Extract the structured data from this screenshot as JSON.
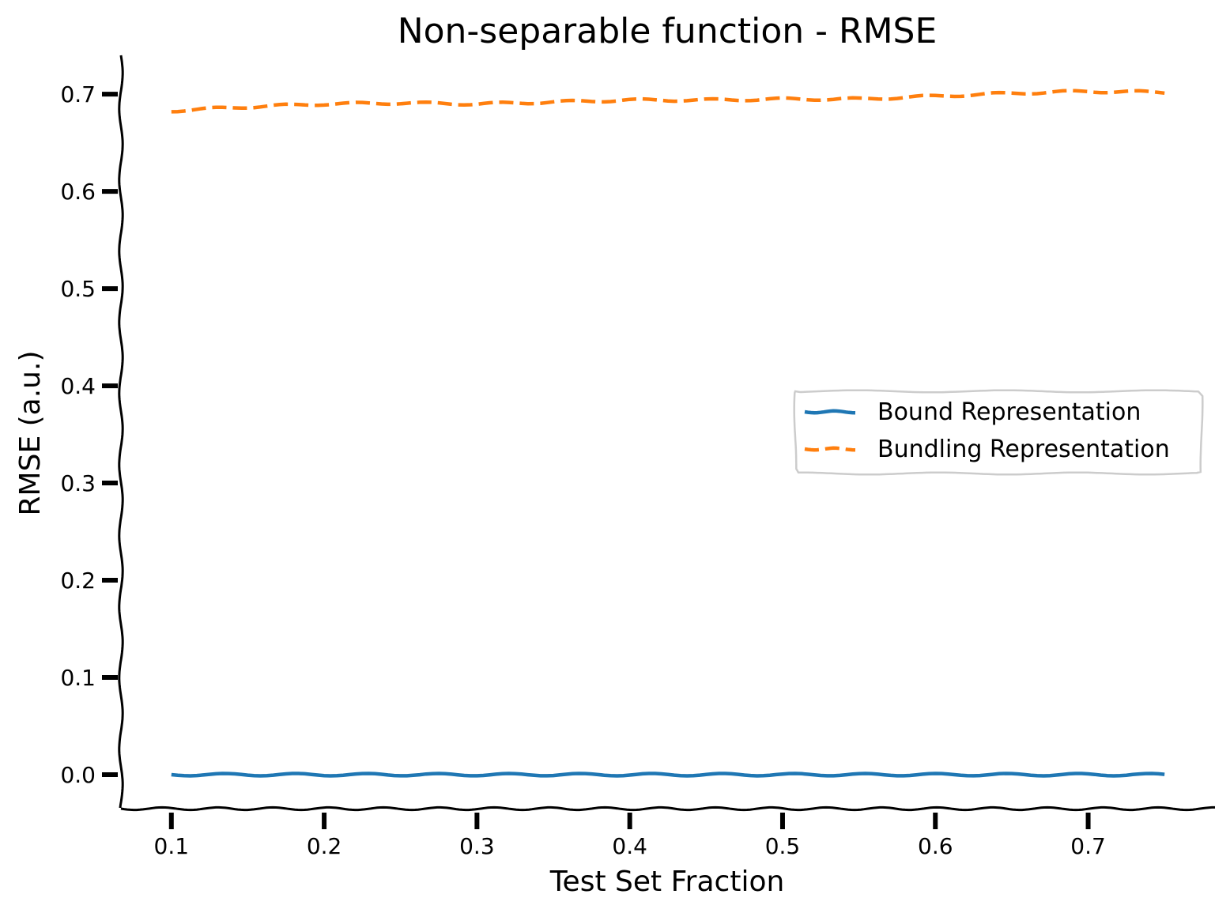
{
  "chart_data": {
    "type": "line",
    "title": "Non-separable function - RMSE",
    "xlabel": "Test Set Fraction",
    "ylabel": "RMSE (a.u.)",
    "xlim": [
      0.067,
      0.783
    ],
    "ylim": [
      -0.035,
      0.74
    ],
    "xticks": [
      0.1,
      0.2,
      0.3,
      0.4,
      0.5,
      0.6,
      0.7
    ],
    "xtick_labels": [
      "0.1",
      "0.2",
      "0.3",
      "0.4",
      "0.5",
      "0.6",
      "0.7"
    ],
    "yticks": [
      0.0,
      0.1,
      0.2,
      0.3,
      0.4,
      0.5,
      0.6,
      0.7
    ],
    "ytick_labels": [
      "0.0",
      "0.1",
      "0.2",
      "0.3",
      "0.4",
      "0.5",
      "0.6",
      "0.7"
    ],
    "grid": false,
    "legend_position": "center-right",
    "style": "xkcd",
    "x": [
      0.1,
      0.15,
      0.2,
      0.25,
      0.3,
      0.35,
      0.4,
      0.45,
      0.5,
      0.55,
      0.6,
      0.65,
      0.7,
      0.75
    ],
    "series": [
      {
        "name": "Bound Representation",
        "color": "#1f77b4",
        "dash": "solid",
        "values": [
          0.0,
          0.0,
          0.0,
          0.0,
          0.0,
          0.0,
          0.0,
          0.0,
          0.0,
          0.0,
          0.0,
          0.0,
          0.0,
          0.0
        ]
      },
      {
        "name": "Bundling Representation",
        "color": "#ff7f0e",
        "dash": "dashed",
        "values": [
          0.683,
          0.687,
          0.69,
          0.691,
          0.69,
          0.692,
          0.694,
          0.694,
          0.695,
          0.695,
          0.698,
          0.701,
          0.703,
          0.702
        ]
      }
    ]
  }
}
